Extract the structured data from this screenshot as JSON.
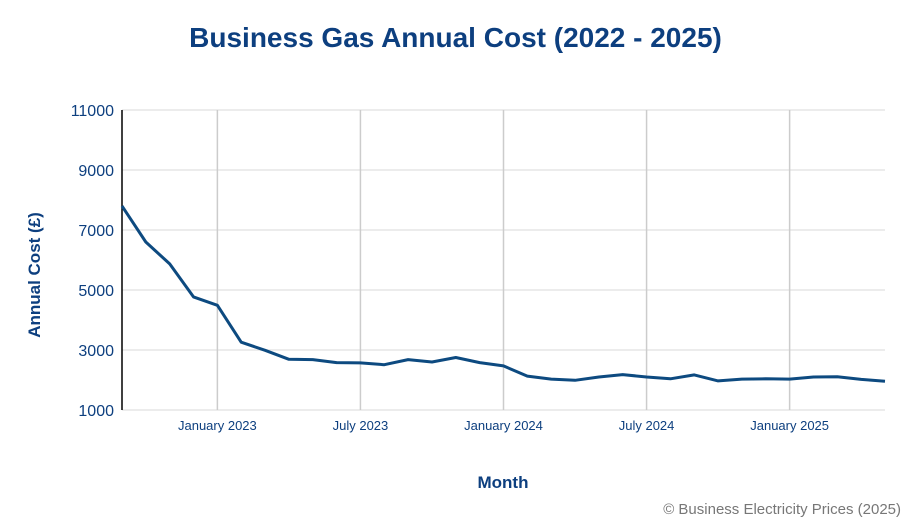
{
  "chart_data": {
    "type": "line",
    "title": "Business Gas Annual Cost (2022 - 2025)",
    "xlabel": "Month",
    "ylabel": "Annual Cost (£)",
    "ylim": [
      1000,
      11000
    ],
    "yticks": [
      1000,
      3000,
      5000,
      7000,
      9000,
      11000
    ],
    "ytick_labels": [
      "1000",
      "3000",
      "5000",
      "7000",
      "9000",
      "11000"
    ],
    "xticks": [
      "January 2023",
      "July 2023",
      "January 2024",
      "July 2024",
      "January 2025"
    ],
    "grid": true,
    "legend": "none",
    "color": "#0d4a80",
    "x": [
      "2022-09",
      "2022-10",
      "2022-11",
      "2022-12",
      "2023-01",
      "2023-02",
      "2023-03",
      "2023-04",
      "2023-05",
      "2023-06",
      "2023-07",
      "2023-08",
      "2023-09",
      "2023-10",
      "2023-11",
      "2023-12",
      "2024-01",
      "2024-02",
      "2024-03",
      "2024-04",
      "2024-05",
      "2024-06",
      "2024-07",
      "2024-08",
      "2024-09",
      "2024-10",
      "2024-11",
      "2024-12",
      "2025-01",
      "2025-02",
      "2025-03",
      "2025-04",
      "2025-05"
    ],
    "values": [
      7800,
      6600,
      5870,
      4770,
      4490,
      3260,
      2990,
      2690,
      2680,
      2580,
      2570,
      2510,
      2680,
      2600,
      2750,
      2580,
      2470,
      2130,
      2030,
      1990,
      2100,
      2180,
      2100,
      2040,
      2170,
      1970,
      2030,
      2040,
      2030,
      2100,
      2110,
      2020,
      1960
    ]
  },
  "credit": "© Business Electricity Prices (2025)"
}
